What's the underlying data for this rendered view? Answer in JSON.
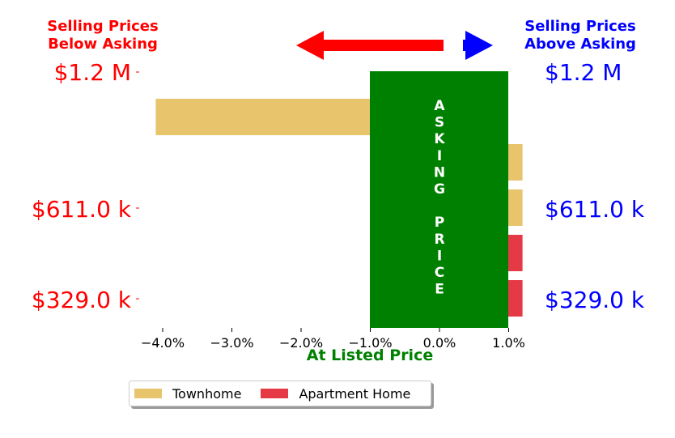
{
  "chart_data": {
    "type": "bar",
    "orientation": "horizontal",
    "title_left": [
      "Selling Prices",
      "Below Asking"
    ],
    "title_right": [
      "Selling Prices",
      "Above Asking"
    ],
    "xlabel": "At Listed Price",
    "band_label": "ASKING PRICE",
    "band_label_letters": [
      "A",
      "S",
      "K",
      "I",
      "N",
      "G",
      "",
      "P",
      "R",
      "I",
      "C",
      "E"
    ],
    "xlim": [
      -4.3,
      1.0
    ],
    "xticks": [
      -4.0,
      -3.0,
      -2.0,
      -1.0,
      0.0,
      1.0
    ],
    "xtick_labels": [
      "−4.0%",
      "−3.0%",
      "−2.0%",
      "−1.0%",
      "0.0%",
      "1.0%"
    ],
    "ytick_labels_left": [
      "$1.2 M",
      "$611.0 k",
      "$329.0 k"
    ],
    "ytick_labels_right": [
      "$1.2 M",
      "$611.0 k",
      "$329.0 k"
    ],
    "bars": [
      {
        "category": "Townhome",
        "value": -4.1
      },
      {
        "category": "Townhome",
        "value": 1.2
      },
      {
        "category": "Townhome",
        "value": 1.2
      },
      {
        "category": "Apartment Home",
        "value": 1.2
      },
      {
        "category": "Apartment Home",
        "value": 1.2
      }
    ],
    "legend": [
      {
        "name": "Townhome",
        "color": "#e8c46c"
      },
      {
        "name": "Apartment Home",
        "color": "#e63946"
      }
    ],
    "legend_position": "bottom",
    "colors": {
      "band": "#008000",
      "left_text": "#ff0000",
      "right_text": "#0000ff",
      "xlabel": "#008000"
    }
  }
}
